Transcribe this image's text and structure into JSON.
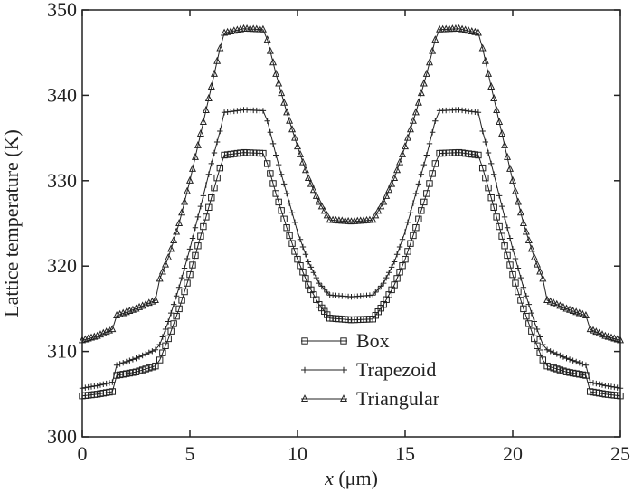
{
  "chart_data": {
    "type": "line",
    "title": "",
    "xlabel_italic": "x",
    "xlabel_rest": " (μm)",
    "ylabel": "Lattice temperature (K)",
    "xlim": [
      0,
      25
    ],
    "ylim": [
      300,
      350
    ],
    "xticks": [
      0,
      5,
      10,
      15,
      20,
      25
    ],
    "yticks": [
      300,
      310,
      320,
      330,
      340,
      350
    ],
    "grid": false,
    "legend_position": "bottom-center",
    "series": [
      {
        "name": "Box",
        "marker": "square",
        "points": [
          [
            0,
            304.8
          ],
          [
            0.7,
            305.0
          ],
          [
            1.4,
            305.3
          ],
          [
            1.6,
            307.2
          ],
          [
            2.5,
            307.6
          ],
          [
            3.4,
            308.3
          ],
          [
            3.6,
            309.0
          ],
          [
            4.0,
            311.5
          ],
          [
            4.5,
            315.0
          ],
          [
            5.0,
            319.0
          ],
          [
            5.5,
            323.5
          ],
          [
            6.0,
            328.0
          ],
          [
            6.4,
            331.5
          ],
          [
            6.6,
            333.0
          ],
          [
            7.5,
            333.3
          ],
          [
            8.4,
            333.2
          ],
          [
            8.6,
            332.0
          ],
          [
            9.0,
            328.5
          ],
          [
            9.5,
            324.5
          ],
          [
            10.0,
            320.8
          ],
          [
            10.5,
            317.8
          ],
          [
            11.0,
            315.5
          ],
          [
            11.5,
            313.9
          ],
          [
            12.5,
            313.7
          ],
          [
            13.5,
            313.8
          ],
          [
            14.0,
            315.5
          ],
          [
            14.5,
            317.8
          ],
          [
            15.0,
            320.8
          ],
          [
            15.5,
            324.5
          ],
          [
            16.0,
            328.5
          ],
          [
            16.4,
            332.0
          ],
          [
            16.6,
            333.2
          ],
          [
            17.5,
            333.3
          ],
          [
            18.4,
            333.0
          ],
          [
            18.6,
            331.5
          ],
          [
            19.0,
            328.0
          ],
          [
            19.5,
            323.5
          ],
          [
            20.0,
            319.0
          ],
          [
            20.5,
            315.0
          ],
          [
            21.0,
            311.5
          ],
          [
            21.4,
            309.0
          ],
          [
            21.6,
            308.3
          ],
          [
            22.5,
            307.6
          ],
          [
            23.4,
            307.2
          ],
          [
            23.6,
            305.3
          ],
          [
            24.3,
            305.0
          ],
          [
            25,
            304.8
          ]
        ]
      },
      {
        "name": "Trapezoid",
        "marker": "plus",
        "points": [
          [
            0,
            305.7
          ],
          [
            0.7,
            306.0
          ],
          [
            1.4,
            306.4
          ],
          [
            1.6,
            308.4
          ],
          [
            2.5,
            309.2
          ],
          [
            3.4,
            310.2
          ],
          [
            3.6,
            310.8
          ],
          [
            4.0,
            313.5
          ],
          [
            4.5,
            317.5
          ],
          [
            5.0,
            322.0
          ],
          [
            5.5,
            327.0
          ],
          [
            6.0,
            332.0
          ],
          [
            6.4,
            335.8
          ],
          [
            6.6,
            338.0
          ],
          [
            7.5,
            338.3
          ],
          [
            8.4,
            338.2
          ],
          [
            8.6,
            337.0
          ],
          [
            9.0,
            333.0
          ],
          [
            9.5,
            328.5
          ],
          [
            10.0,
            324.0
          ],
          [
            10.5,
            320.5
          ],
          [
            11.0,
            318.0
          ],
          [
            11.5,
            316.6
          ],
          [
            12.5,
            316.4
          ],
          [
            13.5,
            316.6
          ],
          [
            14.0,
            318.0
          ],
          [
            14.5,
            320.5
          ],
          [
            15.0,
            324.0
          ],
          [
            15.5,
            328.5
          ],
          [
            16.0,
            333.0
          ],
          [
            16.4,
            337.0
          ],
          [
            16.6,
            338.2
          ],
          [
            17.5,
            338.3
          ],
          [
            18.4,
            338.0
          ],
          [
            18.6,
            335.8
          ],
          [
            19.0,
            332.0
          ],
          [
            19.5,
            327.0
          ],
          [
            20.0,
            322.0
          ],
          [
            20.5,
            317.5
          ],
          [
            21.0,
            313.5
          ],
          [
            21.4,
            310.8
          ],
          [
            21.6,
            310.2
          ],
          [
            22.5,
            309.2
          ],
          [
            23.4,
            308.4
          ],
          [
            23.6,
            306.4
          ],
          [
            24.3,
            306.0
          ],
          [
            25,
            305.7
          ]
        ]
      },
      {
        "name": "Triangular",
        "marker": "triangle",
        "points": [
          [
            0,
            311.3
          ],
          [
            0.7,
            311.8
          ],
          [
            1.4,
            312.6
          ],
          [
            1.6,
            314.2
          ],
          [
            2.5,
            315.0
          ],
          [
            3.4,
            316.0
          ],
          [
            3.6,
            318.5
          ],
          [
            4.0,
            321.0
          ],
          [
            4.5,
            325.0
          ],
          [
            5.0,
            330.0
          ],
          [
            5.5,
            335.5
          ],
          [
            6.0,
            341.0
          ],
          [
            6.4,
            345.5
          ],
          [
            6.6,
            347.3
          ],
          [
            7.5,
            347.8
          ],
          [
            8.4,
            347.7
          ],
          [
            8.6,
            346.5
          ],
          [
            9.0,
            342.5
          ],
          [
            9.5,
            338.0
          ],
          [
            10.0,
            334.0
          ],
          [
            10.5,
            330.3
          ],
          [
            11.0,
            327.5
          ],
          [
            11.5,
            325.4
          ],
          [
            12.5,
            325.2
          ],
          [
            13.5,
            325.4
          ],
          [
            14.0,
            327.5
          ],
          [
            14.5,
            330.3
          ],
          [
            15.0,
            334.0
          ],
          [
            15.5,
            338.0
          ],
          [
            16.0,
            342.5
          ],
          [
            16.4,
            346.5
          ],
          [
            16.6,
            347.7
          ],
          [
            17.5,
            347.8
          ],
          [
            18.4,
            347.3
          ],
          [
            18.6,
            345.5
          ],
          [
            19.0,
            341.0
          ],
          [
            19.5,
            335.5
          ],
          [
            20.0,
            330.0
          ],
          [
            20.5,
            325.0
          ],
          [
            21.0,
            321.0
          ],
          [
            21.4,
            318.5
          ],
          [
            21.6,
            316.0
          ],
          [
            22.5,
            315.0
          ],
          [
            23.4,
            314.2
          ],
          [
            23.6,
            312.6
          ],
          [
            24.3,
            311.8
          ],
          [
            25,
            311.3
          ]
        ]
      }
    ]
  }
}
